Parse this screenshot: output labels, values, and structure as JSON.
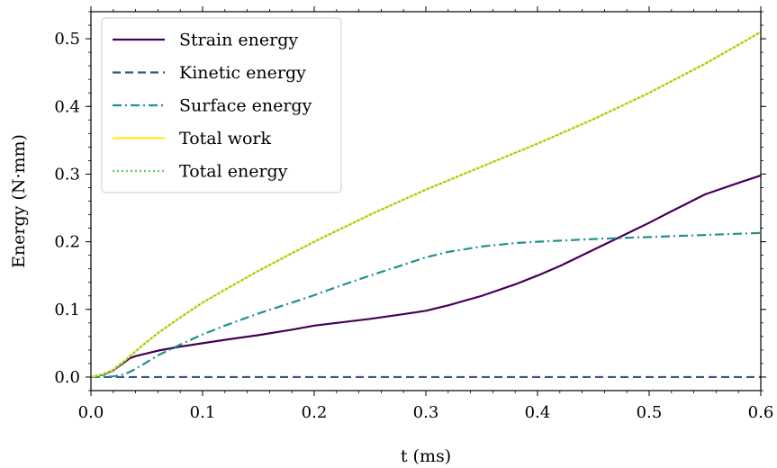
{
  "chart_data": {
    "type": "line",
    "title": "",
    "xlabel": "t (ms)",
    "ylabel": "Energy (N·mm)",
    "xlim": [
      0.0,
      0.6
    ],
    "ylim": [
      -0.02,
      0.54
    ],
    "xticks": [
      0.0,
      0.1,
      0.2,
      0.3,
      0.4,
      0.5,
      0.6
    ],
    "xtick_labels": [
      "0.0",
      "0.1",
      "0.2",
      "0.3",
      "0.4",
      "0.5",
      "0.6"
    ],
    "yticks": [
      0.0,
      0.1,
      0.2,
      0.3,
      0.4,
      0.5
    ],
    "ytick_labels": [
      "0.0",
      "0.1",
      "0.2",
      "0.3",
      "0.4",
      "0.5"
    ],
    "grid": false,
    "legend_position": "top-left",
    "series": [
      {
        "name": "Strain energy",
        "color": "#440154",
        "style": "solid",
        "x": [
          0,
          0.01,
          0.02,
          0.03,
          0.035,
          0.04,
          0.05,
          0.06,
          0.08,
          0.1,
          0.12,
          0.15,
          0.18,
          0.2,
          0.22,
          0.25,
          0.28,
          0.3,
          0.32,
          0.35,
          0.38,
          0.4,
          0.42,
          0.45,
          0.48,
          0.5,
          0.52,
          0.55,
          0.58,
          0.6
        ],
        "values": [
          0,
          0.003,
          0.01,
          0.022,
          0.028,
          0.031,
          0.035,
          0.039,
          0.045,
          0.05,
          0.055,
          0.062,
          0.07,
          0.076,
          0.08,
          0.086,
          0.093,
          0.098,
          0.106,
          0.12,
          0.137,
          0.15,
          0.164,
          0.188,
          0.212,
          0.228,
          0.245,
          0.27,
          0.287,
          0.298
        ]
      },
      {
        "name": "Kinetic energy",
        "color": "#3b528b",
        "style": "dashed",
        "x": [
          0,
          0.6
        ],
        "values": [
          0,
          0
        ]
      },
      {
        "name": "Surface energy",
        "color": "#21918c",
        "style": "dashdot",
        "x": [
          0,
          0.02,
          0.03,
          0.04,
          0.05,
          0.06,
          0.08,
          0.1,
          0.12,
          0.15,
          0.18,
          0.2,
          0.22,
          0.25,
          0.28,
          0.3,
          0.32,
          0.35,
          0.38,
          0.4,
          0.45,
          0.5,
          0.55,
          0.6
        ],
        "values": [
          0,
          0.001,
          0.004,
          0.012,
          0.022,
          0.032,
          0.048,
          0.063,
          0.076,
          0.094,
          0.11,
          0.121,
          0.133,
          0.15,
          0.166,
          0.177,
          0.185,
          0.193,
          0.198,
          0.2,
          0.204,
          0.207,
          0.21,
          0.213
        ]
      },
      {
        "name": "Total work",
        "color": "#fde725",
        "style": "solid",
        "x": [
          0,
          0.01,
          0.02,
          0.03,
          0.04,
          0.05,
          0.06,
          0.08,
          0.1,
          0.12,
          0.15,
          0.18,
          0.2,
          0.25,
          0.3,
          0.35,
          0.4,
          0.45,
          0.5,
          0.55,
          0.6
        ],
        "values": [
          0,
          0.004,
          0.011,
          0.024,
          0.038,
          0.052,
          0.065,
          0.088,
          0.11,
          0.129,
          0.157,
          0.183,
          0.2,
          0.24,
          0.277,
          0.311,
          0.345,
          0.381,
          0.42,
          0.463,
          0.51
        ]
      },
      {
        "name": "Total energy",
        "color": "#5ec962",
        "style": "dotted",
        "x": [
          0,
          0.01,
          0.02,
          0.03,
          0.04,
          0.05,
          0.06,
          0.08,
          0.1,
          0.12,
          0.15,
          0.18,
          0.2,
          0.25,
          0.3,
          0.35,
          0.4,
          0.45,
          0.5,
          0.55,
          0.6
        ],
        "values": [
          0,
          0.004,
          0.011,
          0.024,
          0.038,
          0.052,
          0.065,
          0.088,
          0.11,
          0.129,
          0.157,
          0.183,
          0.2,
          0.24,
          0.277,
          0.311,
          0.345,
          0.381,
          0.42,
          0.463,
          0.51
        ]
      }
    ]
  }
}
